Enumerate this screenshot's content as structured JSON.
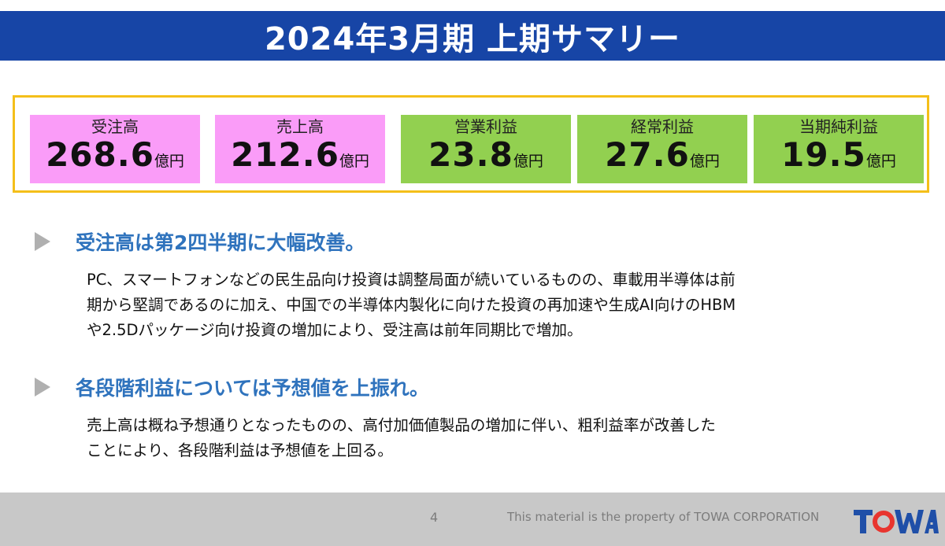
{
  "title": "2024年3月期 上期サマリー",
  "kpis": [
    {
      "label": "受注高",
      "value": "268.6",
      "unit": "億円",
      "color": "#fa9cf8"
    },
    {
      "label": "売上高",
      "value": "212.6",
      "unit": "億円",
      "color": "#fa9cf8"
    },
    {
      "label": "営業利益",
      "value": "23.8",
      "unit": "億円",
      "color": "#92d050"
    },
    {
      "label": "経常利益",
      "value": "27.6",
      "unit": "億円",
      "color": "#92d050"
    },
    {
      "label": "当期純利益",
      "value": "19.5",
      "unit": "億円",
      "color": "#92d050"
    }
  ],
  "sections": [
    {
      "heading": "受注高は第2四半期に大幅改善。",
      "lines": [
        "PC、スマートフォンなどの民生品向け投資は調整局面が続いているものの、車載用半導体は前",
        "期から堅調であるのに加え、中国での半導体内製化に向けた投資の再加速や生成AI向けのHBM",
        "や2.5Dパッケージ向け投資の増加により、受注高は前年同期比で増加。"
      ]
    },
    {
      "heading": "各段階利益については予想値を上振れ。",
      "lines": [
        "売上高は概ね予想通りとなったものの、高付加価値製品の増加に伴い、粗利益率が改善した",
        "ことにより、各段階利益は予想値を上回る。"
      ]
    }
  ],
  "footer": {
    "page_number": "4",
    "copyright": "This material is the property of TOWA CORPORATION",
    "logo_text": "TOWA"
  },
  "colors": {
    "title_bar": "#1745a6",
    "frame_border": "#f4bf1a",
    "heading": "#2f73bd",
    "bullet": "#b0b0b0",
    "footer_bg": "#c8c8c8",
    "logo_blue": "#1f4fa8",
    "logo_red": "#e8352f"
  }
}
